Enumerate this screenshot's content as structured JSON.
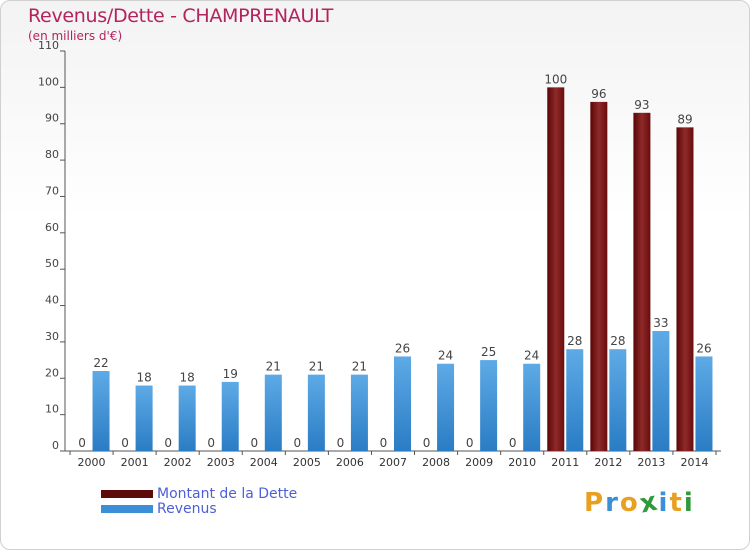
{
  "header": {
    "title": "Revenus/Dette - CHAMPRENAULT",
    "subtitle": "(en milliers d'€)"
  },
  "chart_data": {
    "type": "bar",
    "title": "Revenus/Dette - CHAMPRENAULT",
    "ylabel": "(en milliers d'€)",
    "xlabel": "",
    "ylim": [
      0,
      110
    ],
    "yticks": [
      0,
      10,
      20,
      30,
      40,
      50,
      60,
      70,
      80,
      90,
      100,
      110
    ],
    "grid": false,
    "legend_position": "bottom-left",
    "categories": [
      "2000",
      "2001",
      "2002",
      "2003",
      "2004",
      "2005",
      "2006",
      "2007",
      "2008",
      "2009",
      "2010",
      "2011",
      "2012",
      "2013",
      "2014"
    ],
    "series": [
      {
        "name": "Montant de la Dette",
        "color": "#7a1414",
        "values": [
          0,
          0,
          0,
          0,
          0,
          0,
          0,
          0,
          0,
          0,
          0,
          100,
          96,
          93,
          89
        ]
      },
      {
        "name": "Revenus",
        "color": "#3a8fd6",
        "values": [
          22,
          18,
          18,
          19,
          21,
          21,
          21,
          26,
          24,
          25,
          24,
          28,
          28,
          33,
          26
        ]
      }
    ]
  },
  "legend": {
    "items": [
      {
        "label": "Montant de la Dette",
        "color": "#5e0a0a"
      },
      {
        "label": "Revenus",
        "color": "#3a8fd6"
      }
    ]
  },
  "logo": {
    "letters": [
      "P",
      "r",
      "o",
      "x",
      "i",
      "t",
      "i"
    ],
    "colors": [
      "#e8a020",
      "#3a8fd6",
      "#e8a020",
      "#2e9a3a",
      "#3a8fd6",
      "#e8a020",
      "#2e9a3a"
    ]
  }
}
